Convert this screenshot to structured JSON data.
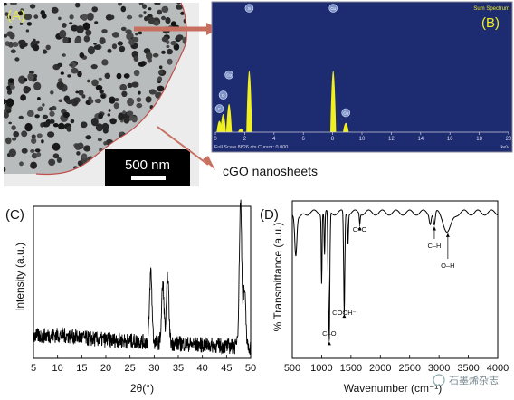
{
  "panels": {
    "a": {
      "label": "(A)",
      "scale_bar": "500 nm",
      "annotation": "cGO nanosheets"
    },
    "b": {
      "label": "(B)",
      "title": "Sum Spectrum",
      "footer": "Full Scale 8826 cts Cursor: 0.000",
      "unit": "keV"
    },
    "c": {
      "label": "(C)"
    },
    "d": {
      "label": "(D)"
    }
  },
  "watermark": "石墨烯杂志",
  "colors": {
    "eds_bg": "#1d2b70",
    "eds_peak": "#f0f020",
    "arrow": "#c87060",
    "tem_edge": "#c0504d"
  },
  "chart_data": [
    {
      "type": "area",
      "panel": "B",
      "title": "Sum Spectrum",
      "xlabel": "keV",
      "xlim": [
        0,
        20
      ],
      "x_ticks": [
        0,
        2,
        4,
        6,
        8,
        10,
        12,
        14,
        16,
        18,
        20
      ],
      "peaks": [
        {
          "x": 0.28,
          "y": 1400,
          "label": "C"
        },
        {
          "x": 0.53,
          "y": 2400,
          "label": "O"
        },
        {
          "x": 0.93,
          "y": 3900,
          "label": "Cu"
        },
        {
          "x": 1.74,
          "y": 250,
          "label": ""
        },
        {
          "x": 2.31,
          "y": 8826,
          "label": "S"
        },
        {
          "x": 8.04,
          "y": 8826,
          "label": "Cu"
        },
        {
          "x": 8.9,
          "y": 1100,
          "label": "Cu"
        }
      ]
    },
    {
      "type": "line",
      "panel": "C",
      "xlabel": "2θ(°)",
      "ylabel": "Intensity (a.u.)",
      "xlim": [
        5,
        50
      ],
      "x_ticks": [
        5,
        10,
        15,
        20,
        25,
        30,
        35,
        40,
        45,
        50
      ],
      "reflections": [
        {
          "x": 29.3,
          "y": 0.5
        },
        {
          "x": 31.8,
          "y": 0.42
        },
        {
          "x": 32.8,
          "y": 0.48
        },
        {
          "x": 47.9,
          "y": 0.98
        },
        {
          "x": 48.7,
          "y": 0.35
        }
      ]
    },
    {
      "type": "line",
      "panel": "D",
      "xlabel": "Wavenumber (cm⁻¹)",
      "ylabel": "% Transmittance (a.u.)",
      "xlim": [
        500,
        4000
      ],
      "x_ticks": [
        500,
        1000,
        1500,
        2000,
        2500,
        3000,
        3500,
        4000
      ],
      "annotations": [
        {
          "x": 1130,
          "label": "C–O"
        },
        {
          "x": 1385,
          "label": "COOH⁻"
        },
        {
          "x": 1650,
          "label": "C=O"
        },
        {
          "x": 2920,
          "label": "C–H"
        },
        {
          "x": 3150,
          "label": "O–H"
        }
      ],
      "bands": [
        {
          "x": 1000,
          "depth": 0.52
        },
        {
          "x": 1050,
          "depth": 0.32
        },
        {
          "x": 1110,
          "depth": 0.4
        },
        {
          "x": 1130,
          "depth": 0.97
        },
        {
          "x": 1385,
          "depth": 0.76
        },
        {
          "x": 1450,
          "depth": 0.22
        },
        {
          "x": 1650,
          "depth": 0.08
        },
        {
          "x": 2850,
          "depth": 0.07
        },
        {
          "x": 2920,
          "depth": 0.1
        },
        {
          "x": 3150,
          "depth": 0.15
        }
      ]
    }
  ]
}
